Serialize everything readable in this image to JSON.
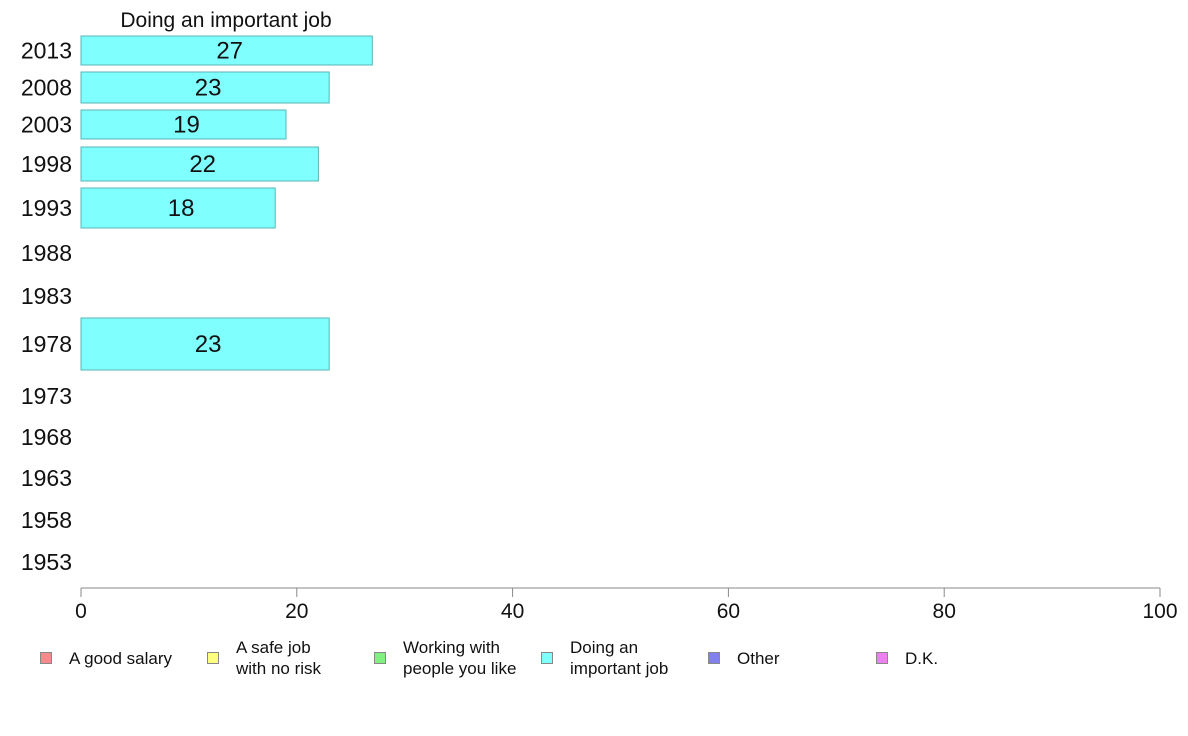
{
  "chart_data": {
    "type": "bar",
    "orientation": "horizontal",
    "title": "Doing an important job",
    "categories": [
      "2013",
      "2008",
      "2003",
      "1998",
      "1993",
      "1988",
      "1983",
      "1978",
      "1973",
      "1968",
      "1963",
      "1958",
      "1953"
    ],
    "values": [
      27,
      23,
      19,
      22,
      18,
      null,
      null,
      23,
      null,
      null,
      null,
      null,
      null
    ],
    "data_labels": [
      "27",
      "23",
      "19",
      "22",
      "18",
      "",
      "",
      "23",
      "",
      "",
      "",
      "",
      ""
    ],
    "xlim": [
      0,
      100
    ],
    "x_ticks": [
      "0",
      "20",
      "40",
      "60",
      "80",
      "100"
    ],
    "bar_color": "#80ffff",
    "bar_border_color": "#5ab4b4",
    "grid": false,
    "legend_placement": "bottom",
    "legend": [
      {
        "label": "A good salary",
        "color": "#f28b8b"
      },
      {
        "label": "A safe job\nwith no risk",
        "color": "#ffff80"
      },
      {
        "label": "Working with\npeople you like",
        "color": "#80f080"
      },
      {
        "label": "Doing an\nimportant job",
        "color": "#80ffff"
      },
      {
        "label": "Other",
        "color": "#8080f0"
      },
      {
        "label": "D.K.",
        "color": "#f080f0"
      }
    ]
  }
}
